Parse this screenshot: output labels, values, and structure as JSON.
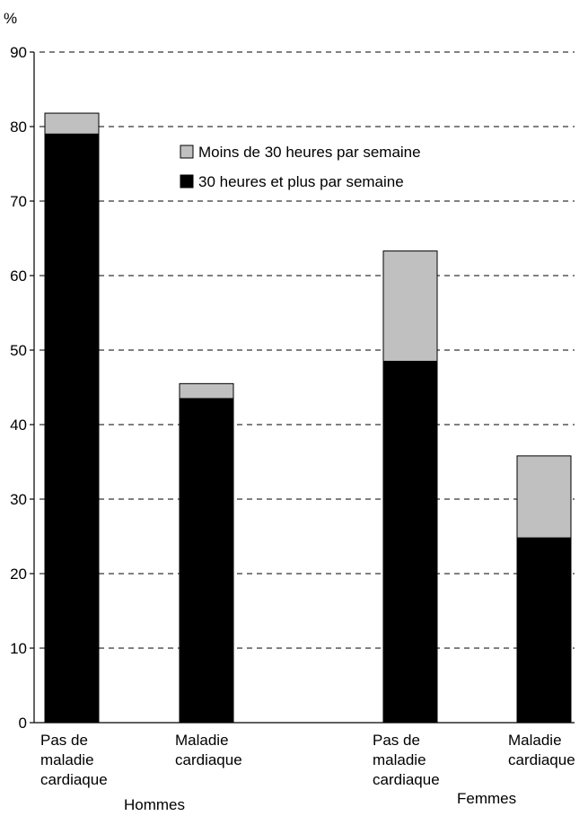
{
  "chart_data": {
    "type": "bar",
    "stacked": true,
    "y_unit": "%",
    "ylim": [
      0,
      90
    ],
    "yticks": [
      0,
      10,
      20,
      30,
      40,
      50,
      60,
      70,
      80,
      90
    ],
    "grid": "horizontal dashed",
    "legend_position": "top-center",
    "categories": [
      {
        "label": [
          "Pas de",
          "maladie",
          "cardiaque"
        ],
        "group": "Hommes"
      },
      {
        "label": [
          "Maladie",
          "cardiaque"
        ],
        "group": "Hommes"
      },
      {
        "label": [
          "Pas de",
          "maladie",
          "cardiaque"
        ],
        "group": "Femmes"
      },
      {
        "label": [
          "Maladie",
          "cardiaque"
        ],
        "group": "Femmes"
      }
    ],
    "groups": [
      "Hommes",
      "Femmes"
    ],
    "series": [
      {
        "name": "30 heures et plus par semaine",
        "color": "#000000",
        "values": [
          79.0,
          43.5,
          48.5,
          24.8
        ]
      },
      {
        "name": "Moins de 30 heures par semaine",
        "color": "#c0c0c0",
        "values": [
          2.8,
          2.0,
          14.8,
          11.0
        ]
      }
    ]
  }
}
